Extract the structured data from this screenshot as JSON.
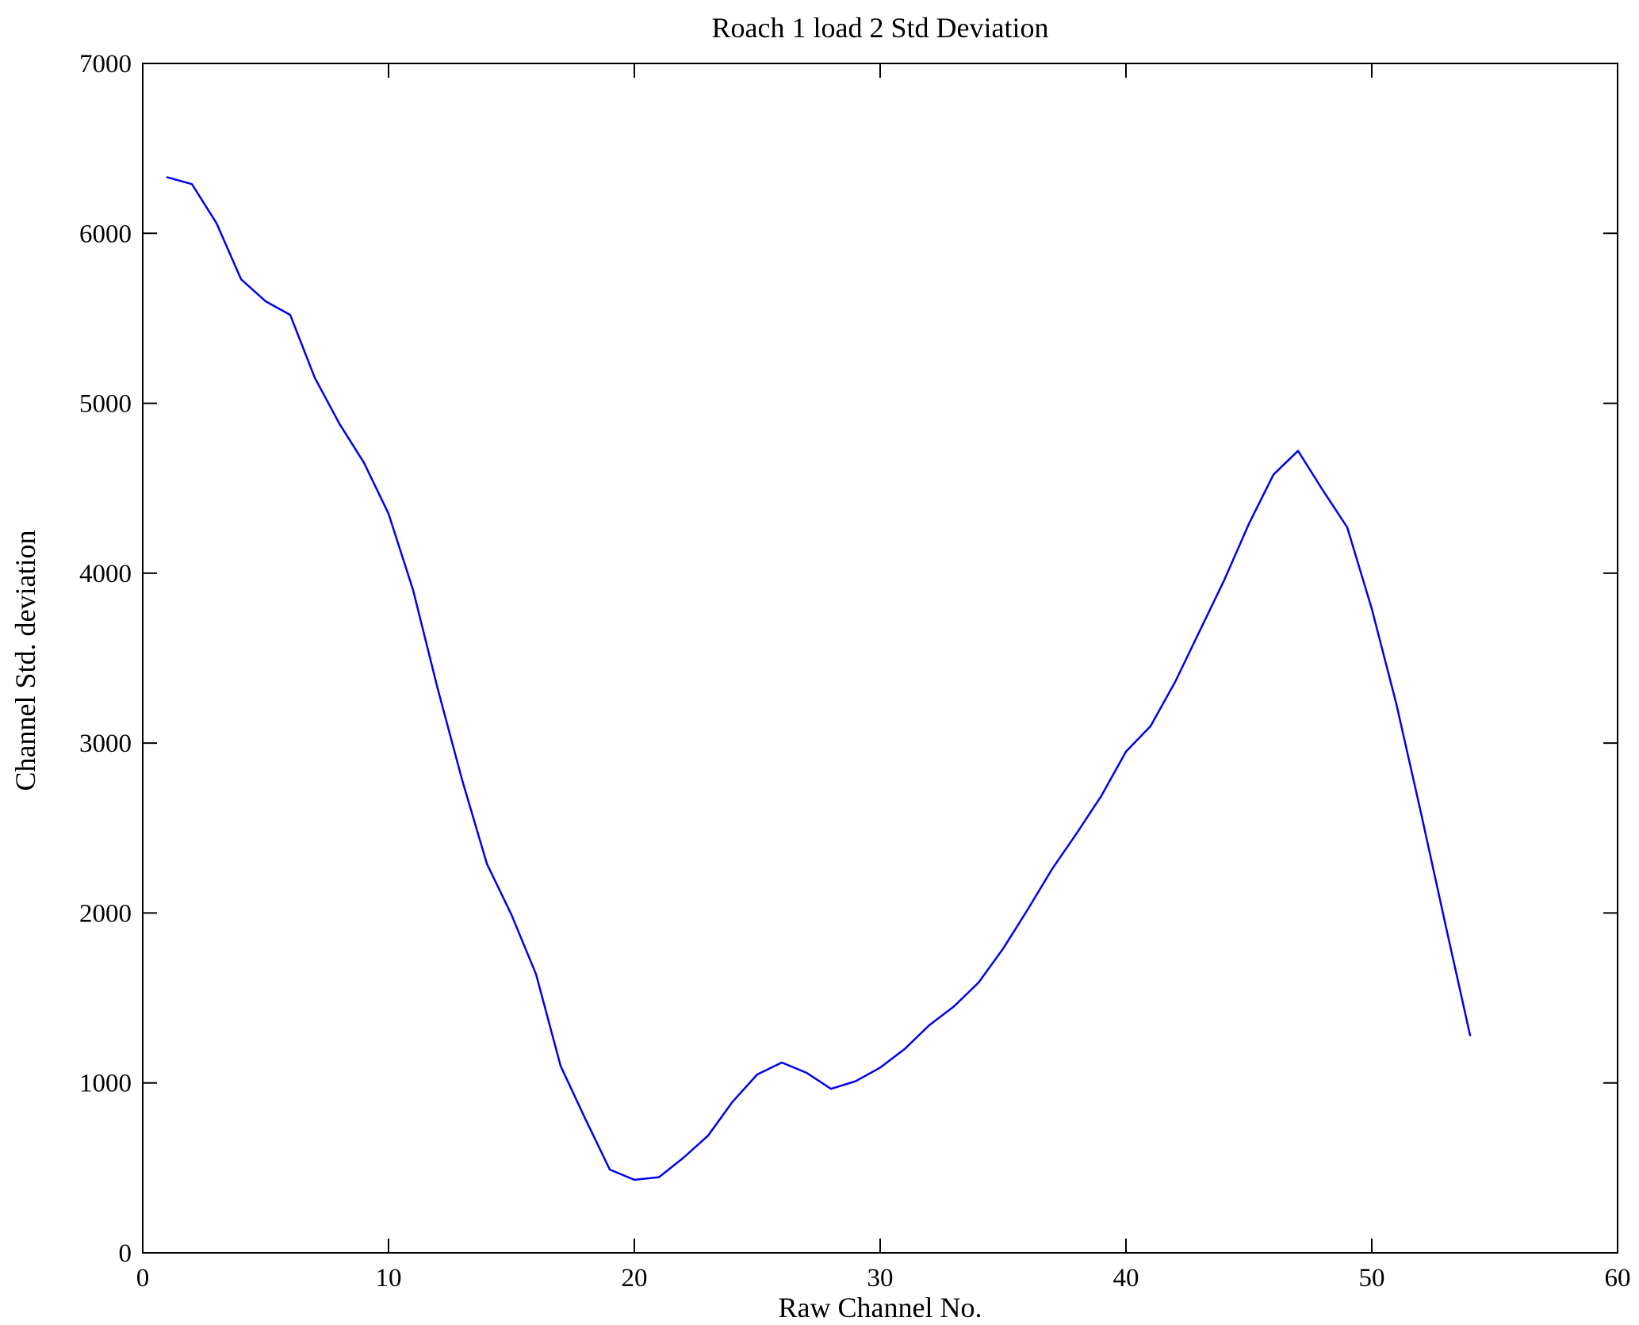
{
  "figure": {
    "background": "#ffffff",
    "axis_color": "#000000"
  },
  "chart_data": {
    "type": "line",
    "title": "Roach 1 load 2 Std Deviation",
    "xlabel": "Raw Channel No.",
    "ylabel": "Channel Std. deviation",
    "xlim": [
      0,
      60
    ],
    "ylim": [
      0,
      7000
    ],
    "xticks": [
      0,
      10,
      20,
      30,
      40,
      50,
      60
    ],
    "yticks": [
      0,
      1000,
      2000,
      3000,
      4000,
      5000,
      6000,
      7000
    ],
    "grid": false,
    "legend": null,
    "series": [
      {
        "name": "Channel Std. deviation",
        "color": "#0000EE",
        "x": [
          1,
          2,
          3,
          4,
          5,
          6,
          7,
          8,
          9,
          10,
          11,
          12,
          13,
          14,
          15,
          16,
          17,
          18,
          19,
          20,
          21,
          22,
          23,
          24,
          25,
          26,
          27,
          28,
          29,
          30,
          31,
          32,
          33,
          34,
          35,
          36,
          37,
          38,
          39,
          40,
          41,
          42,
          43,
          44,
          45,
          46,
          47,
          48,
          49,
          50,
          51,
          52,
          53,
          54
        ],
        "y": [
          6330,
          6290,
          6060,
          5730,
          5600,
          5520,
          5150,
          4880,
          4650,
          4350,
          3900,
          3320,
          2780,
          2290,
          1990,
          1640,
          1100,
          790,
          490,
          430,
          445,
          560,
          690,
          890,
          1050,
          1120,
          1060,
          965,
          1010,
          1090,
          1200,
          1340,
          1450,
          1590,
          1790,
          2020,
          2260,
          2470,
          2690,
          2950,
          3100,
          3360,
          3660,
          3960,
          4290,
          4580,
          4720,
          4490,
          4270,
          3790,
          3230,
          2590,
          1930,
          1280
        ]
      }
    ]
  }
}
